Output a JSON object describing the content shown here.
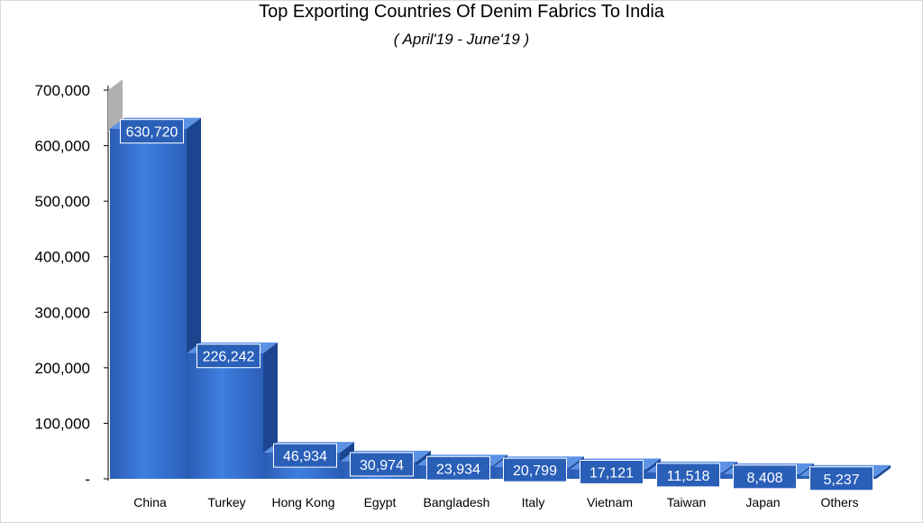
{
  "chart_data": {
    "type": "bar",
    "title": "Top Exporting Countries Of Denim Fabrics To India",
    "subtitle": "( April'19 - June'19 )",
    "categories": [
      "China",
      "Turkey",
      "Hong Kong",
      "Egypt",
      "Bangladesh",
      "Italy",
      "Vietnam",
      "Taiwan",
      "Japan",
      "Others"
    ],
    "values": [
      630720,
      226242,
      46934,
      30974,
      23934,
      20799,
      17121,
      11518,
      8408,
      5237
    ],
    "data_labels": [
      "630,720",
      "226,242",
      "46,934",
      "30,974",
      "23,934",
      "20,799",
      "17,121",
      "11,518",
      "8,408",
      "5,237"
    ],
    "ylim": [
      0,
      700000
    ],
    "yticks": [
      0,
      100000,
      200000,
      300000,
      400000,
      500000,
      600000,
      700000
    ],
    "ytick_labels": [
      "-",
      "100,000",
      "200,000",
      "300,000",
      "400,000",
      "500,000",
      "600,000",
      "700,000"
    ],
    "xlabel": "",
    "ylabel": "",
    "grid": false,
    "legend": "none",
    "bar_color": "#2e66c4",
    "label_box_color": "#2a5fb8"
  }
}
